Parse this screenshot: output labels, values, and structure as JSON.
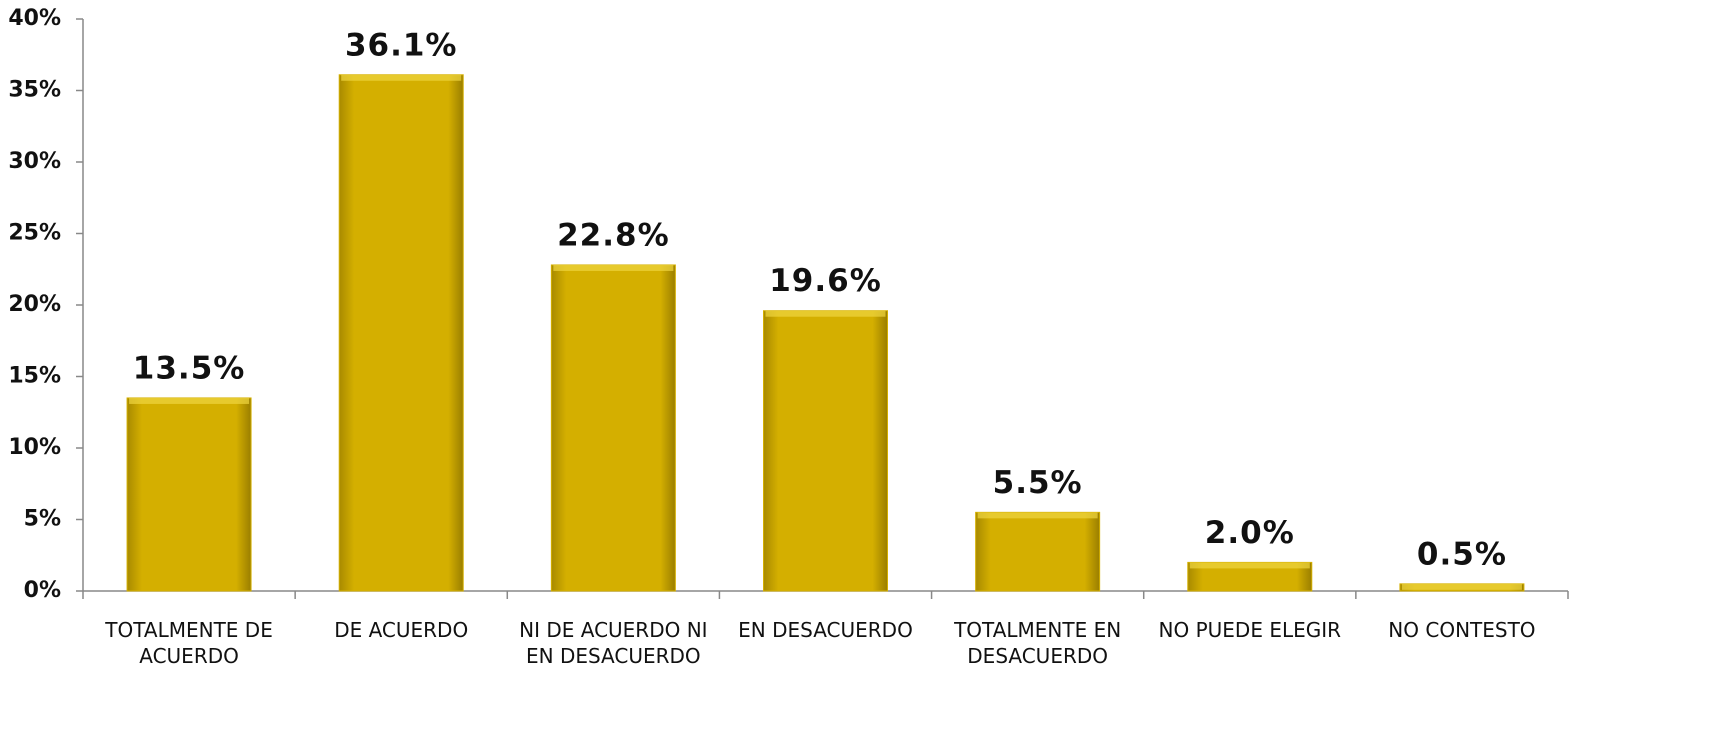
{
  "chart_data": {
    "type": "bar",
    "categories": [
      "TOTALMENTE DE ACUERDO",
      "DE ACUERDO",
      "NI DE ACUERDO NI EN DESACUERDO",
      "EN DESACUERDO",
      "TOTALMENTE EN DESACUERDO",
      "NO PUEDE ELEGIR",
      "NO CONTESTO"
    ],
    "values": [
      13.5,
      36.1,
      22.8,
      19.6,
      5.5,
      2.0,
      0.5
    ],
    "value_labels": [
      "13.5%",
      "36.1%",
      "22.8%",
      "19.6%",
      "5.5%",
      "2.0%",
      "0.5%"
    ],
    "color": "#d4af00",
    "ylim": [
      0,
      40
    ],
    "yticks": [
      {
        "value": 0,
        "label": "0%"
      },
      {
        "value": 5,
        "label": "5%"
      },
      {
        "value": 10,
        "label": "10%"
      },
      {
        "value": 15,
        "label": "15%"
      },
      {
        "value": 20,
        "label": "20%"
      },
      {
        "value": 25,
        "label": "25%"
      },
      {
        "value": 30,
        "label": "30%"
      },
      {
        "value": 35,
        "label": "35%"
      },
      {
        "value": 40,
        "label": "40%"
      }
    ],
    "grid": false
  }
}
